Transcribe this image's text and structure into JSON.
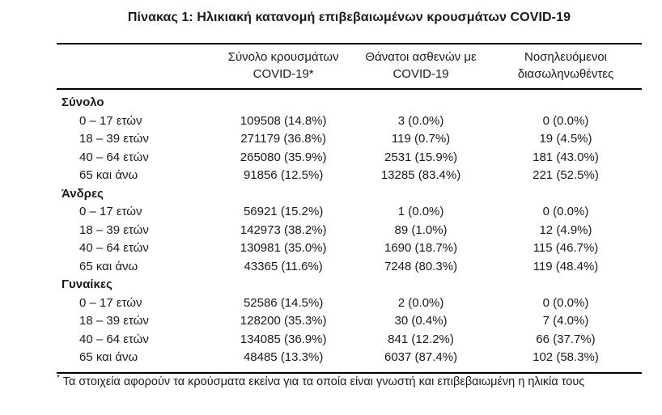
{
  "title": "Πίνακας 1: Ηλικιακή κατανομή επιβεβαιωμένων κρουσμάτων COVID-19",
  "table": {
    "column_headers": [
      {
        "lines": [
          "Σύνολο κρουσμάτων",
          "COVID-19*"
        ]
      },
      {
        "lines": [
          "Θάνατοι ασθενών με",
          "COVID-19"
        ]
      },
      {
        "lines": [
          "Νοσηλευόμενοι",
          "διασωληνωθέντες"
        ]
      }
    ],
    "sections": [
      {
        "label": "Σύνολο",
        "rows": [
          {
            "age_group": "0 – 17 ετών",
            "cases": "109508 (14.8%)",
            "deaths": "3 (0.0%)",
            "intubated": "0 (0.0%)"
          },
          {
            "age_group": "18 – 39 ετών",
            "cases": "271179 (36.8%)",
            "deaths": "119 (0.7%)",
            "intubated": "19 (4.5%)"
          },
          {
            "age_group": "40 – 64 ετών",
            "cases": "265080 (35.9%)",
            "deaths": "2531 (15.9%)",
            "intubated": "181 (43.0%)"
          },
          {
            "age_group": "65 και άνω",
            "cases": "91856 (12.5%)",
            "deaths": "13285 (83.4%)",
            "intubated": "221 (52.5%)"
          }
        ]
      },
      {
        "label": "Άνδρες",
        "rows": [
          {
            "age_group": "0 – 17 ετών",
            "cases": "56921 (15.2%)",
            "deaths": "1 (0.0%)",
            "intubated": "0 (0.0%)"
          },
          {
            "age_group": "18 – 39 ετών",
            "cases": "142973 (38.2%)",
            "deaths": "89 (1.0%)",
            "intubated": "12 (4.9%)"
          },
          {
            "age_group": "40 – 64 ετών",
            "cases": "130981 (35.0%)",
            "deaths": "1690 (18.7%)",
            "intubated": "115 (46.7%)"
          },
          {
            "age_group": "65 και άνω",
            "cases": "43365 (11.6%)",
            "deaths": "7248 (80.3%)",
            "intubated": "119 (48.4%)"
          }
        ]
      },
      {
        "label": "Γυναίκες",
        "rows": [
          {
            "age_group": "0 – 17 ετών",
            "cases": "52586 (14.5%)",
            "deaths": "2 (0.0%)",
            "intubated": "0 (0.0%)"
          },
          {
            "age_group": "18 – 39 ετών",
            "cases": "128200 (35.3%)",
            "deaths": "30 (0.4%)",
            "intubated": "7 (4.0%)"
          },
          {
            "age_group": "40 – 64 ετών",
            "cases": "134085 (36.9%)",
            "deaths": "841 (12.2%)",
            "intubated": "66 (37.7%)"
          },
          {
            "age_group": "65 και άνω",
            "cases": "48485 (13.3%)",
            "deaths": "6037 (87.4%)",
            "intubated": "102 (58.3%)"
          }
        ]
      }
    ]
  },
  "footnote": {
    "marker": "*",
    "text": "Τα στοιχεία αφορούν τα κρούσματα εκείνα για τα οποία είναι γνωστή και επιβεβαιωμένη η ηλικία τους"
  },
  "colors": {
    "text": "#1a1a1a",
    "rule": "#000000",
    "background": "#ffffff"
  }
}
